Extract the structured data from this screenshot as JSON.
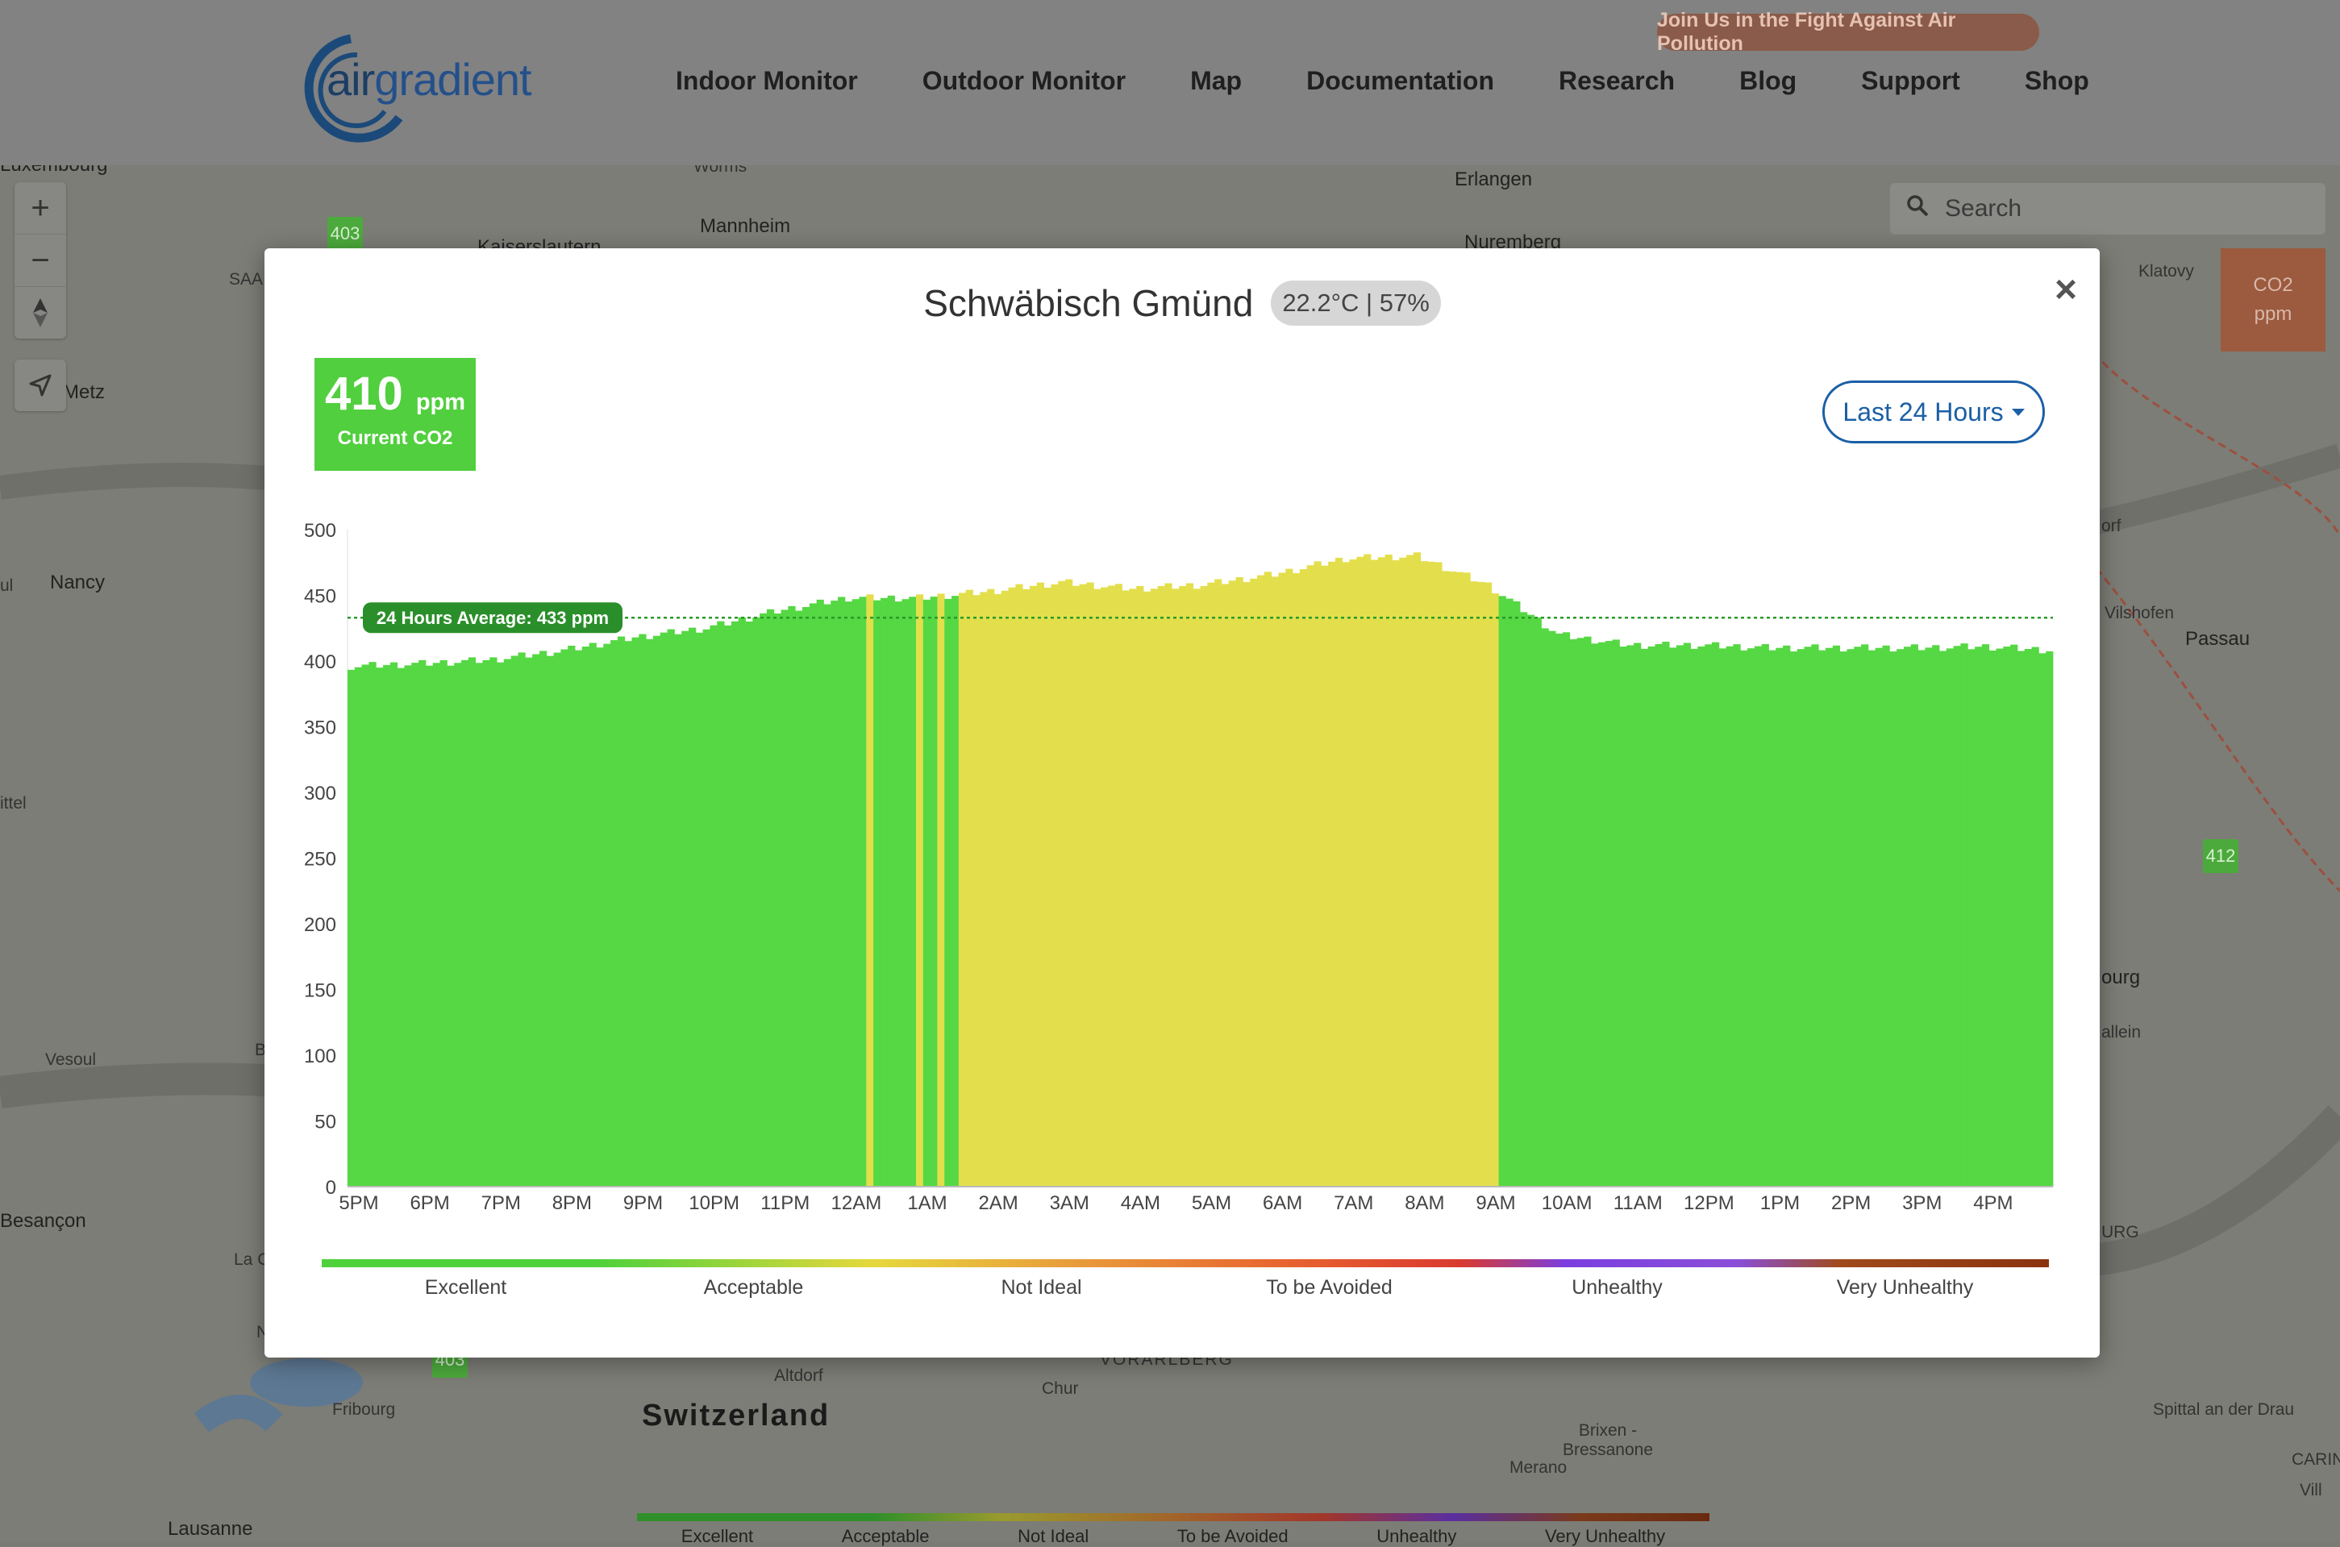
{
  "header": {
    "logo_text_a": "air",
    "logo_text_b": "gradient",
    "nav": [
      "Indoor Monitor",
      "Outdoor Monitor",
      "Map",
      "Documentation",
      "Research",
      "Blog",
      "Support",
      "Shop"
    ],
    "campaign_label": "Join Us in the Fight Against Air Pollution"
  },
  "map": {
    "search_placeholder": "Search",
    "unit_box_line1": "CO2",
    "unit_box_line2": "ppm",
    "labels": [
      "Luxembourg",
      "Worms",
      "Mannheim",
      "Kaiserslautern",
      "Erlangen",
      "Nuremberg",
      "Metz",
      "Nancy",
      "Klatovy",
      "Passau",
      "Vilshofen",
      "Vesoul",
      "Besançon",
      "Fribourg",
      "Lausanne",
      "Switzerland",
      "Altdorf",
      "Chur",
      "VORARLBERG",
      "Merano",
      "Brixen - Bressanone",
      "Spittal an der Drau",
      "SAA",
      "ul",
      "ittel",
      "La C",
      "CARIN",
      "Vill",
      "URG",
      "ourg",
      "allein",
      "orf",
      "B",
      "N"
    ],
    "markers": [
      "403",
      "412",
      "403"
    ],
    "legend": [
      "Excellent",
      "Acceptable",
      "Not Ideal",
      "To be Avoided",
      "Unhealthy",
      "Very Unhealthy"
    ]
  },
  "modal": {
    "location": "Schwäbisch Gmünd",
    "conditions": "22.2°C | 57%",
    "close": "×",
    "current_value": "410",
    "current_unit": "ppm",
    "current_label": "Current CO2",
    "range": "Last 24 Hours",
    "avg_label": "24 Hours Average: 433 ppm",
    "scale": [
      "Excellent",
      "Acceptable",
      "Not Ideal",
      "To be Avoided",
      "Unhealthy",
      "Very Unhealthy"
    ]
  },
  "colors": {
    "excellent": "#55d843",
    "acceptable": "#e3df4c",
    "average_line": "#2a9a2a",
    "brand": "#1b5fa5"
  },
  "chart_data": {
    "type": "bar",
    "ylabel": "",
    "xlabel": "",
    "ylim": [
      0,
      500
    ],
    "yticks": [
      0,
      50,
      100,
      150,
      200,
      250,
      300,
      350,
      400,
      450,
      500
    ],
    "xticks": [
      "5PM",
      "6PM",
      "7PM",
      "8PM",
      "9PM",
      "10PM",
      "11PM",
      "12AM",
      "1AM",
      "2AM",
      "3AM",
      "4AM",
      "5AM",
      "6AM",
      "7AM",
      "8AM",
      "9AM",
      "10AM",
      "11AM",
      "12PM",
      "1PM",
      "2PM",
      "3PM",
      "4PM"
    ],
    "average": 433,
    "threshold_acceptable": 450,
    "hourly_points": [
      {
        "time": "5PM",
        "value": 396
      },
      {
        "time": "6PM",
        "value": 398
      },
      {
        "time": "7PM",
        "value": 401
      },
      {
        "time": "8PM",
        "value": 408
      },
      {
        "time": "9PM",
        "value": 418
      },
      {
        "time": "10PM",
        "value": 425
      },
      {
        "time": "11PM",
        "value": 438
      },
      {
        "time": "12AM",
        "value": 448
      },
      {
        "time": "1AM",
        "value": 448
      },
      {
        "time": "2AM",
        "value": 453
      },
      {
        "time": "3AM",
        "value": 460
      },
      {
        "time": "4AM",
        "value": 455
      },
      {
        "time": "5AM",
        "value": 458
      },
      {
        "time": "6AM",
        "value": 466
      },
      {
        "time": "7AM",
        "value": 478
      },
      {
        "time": "8AM",
        "value": 480
      },
      {
        "time": "9AM",
        "value": 458
      },
      {
        "time": "10AM",
        "value": 420
      },
      {
        "time": "11AM",
        "value": 412
      },
      {
        "time": "12PM",
        "value": 412
      },
      {
        "time": "1PM",
        "value": 410
      },
      {
        "time": "2PM",
        "value": 410
      },
      {
        "time": "3PM",
        "value": 410
      },
      {
        "time": "4PM",
        "value": 411
      },
      {
        "time": "4:59PM",
        "value": 408
      }
    ]
  }
}
